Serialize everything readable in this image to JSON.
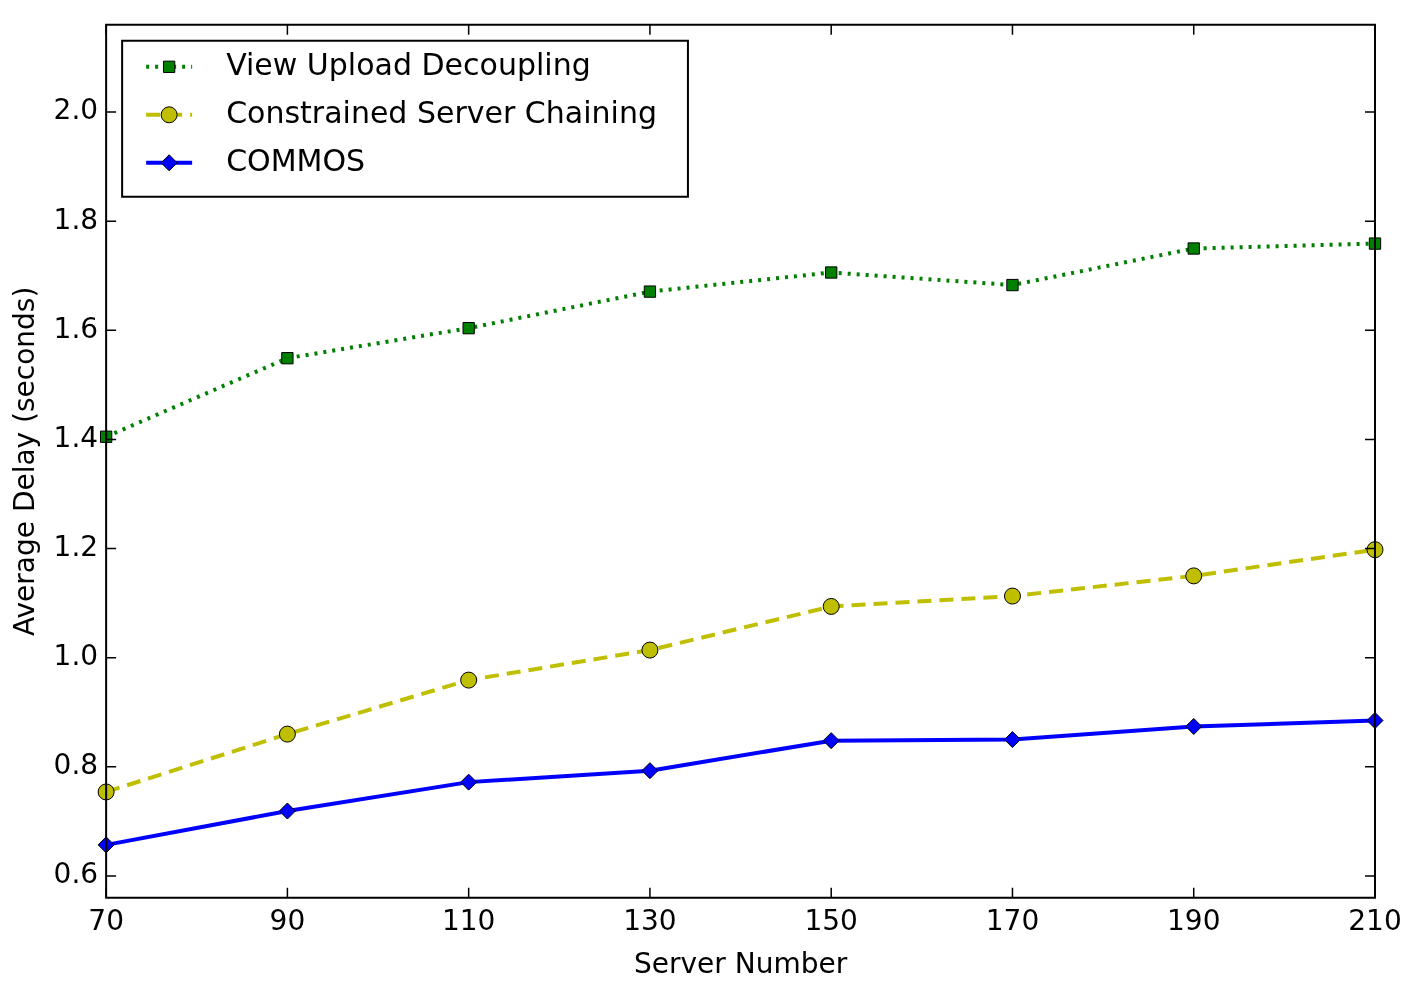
{
  "chart_data": {
    "type": "line",
    "xlabel": "Server Number",
    "ylabel": "Average Delay (seconds)",
    "x": [
      70,
      90,
      110,
      130,
      150,
      170,
      190,
      210
    ],
    "series": [
      {
        "name": "View Upload Decoupling",
        "color": "#008000",
        "marker": "square",
        "line_style": "dotted",
        "values": [
          1.405,
          1.549,
          1.604,
          1.671,
          1.706,
          1.683,
          1.75,
          1.759
        ]
      },
      {
        "name": "Constrained Server Chaining",
        "color": "#bfbf00",
        "marker": "circle",
        "line_style": "dashed",
        "values": [
          0.754,
          0.86,
          0.959,
          1.014,
          1.094,
          1.113,
          1.15,
          1.198
        ]
      },
      {
        "name": "COMMOS",
        "color": "#0000ff",
        "marker": "diamond",
        "line_style": "solid",
        "values": [
          0.657,
          0.719,
          0.772,
          0.793,
          0.848,
          0.85,
          0.874,
          0.885
        ]
      }
    ],
    "xlim": [
      70,
      210
    ],
    "xticks": [
      70,
      90,
      110,
      130,
      150,
      170,
      190,
      210
    ],
    "ylim": [
      0.56,
      2.16
    ],
    "yticks": [
      {
        "value": 0.6,
        "label": "0.6"
      },
      {
        "value": 0.8,
        "label": "0.8"
      },
      {
        "value": 1.0,
        "label": "1.0"
      },
      {
        "value": 1.2,
        "label": "1.2"
      },
      {
        "value": 1.4,
        "label": "1.4"
      },
      {
        "value": 1.6,
        "label": "1.6"
      },
      {
        "value": 1.8,
        "label": "1.8"
      },
      {
        "value": 2.0,
        "label": "2.0"
      }
    ],
    "grid": false,
    "legend": "top left"
  }
}
